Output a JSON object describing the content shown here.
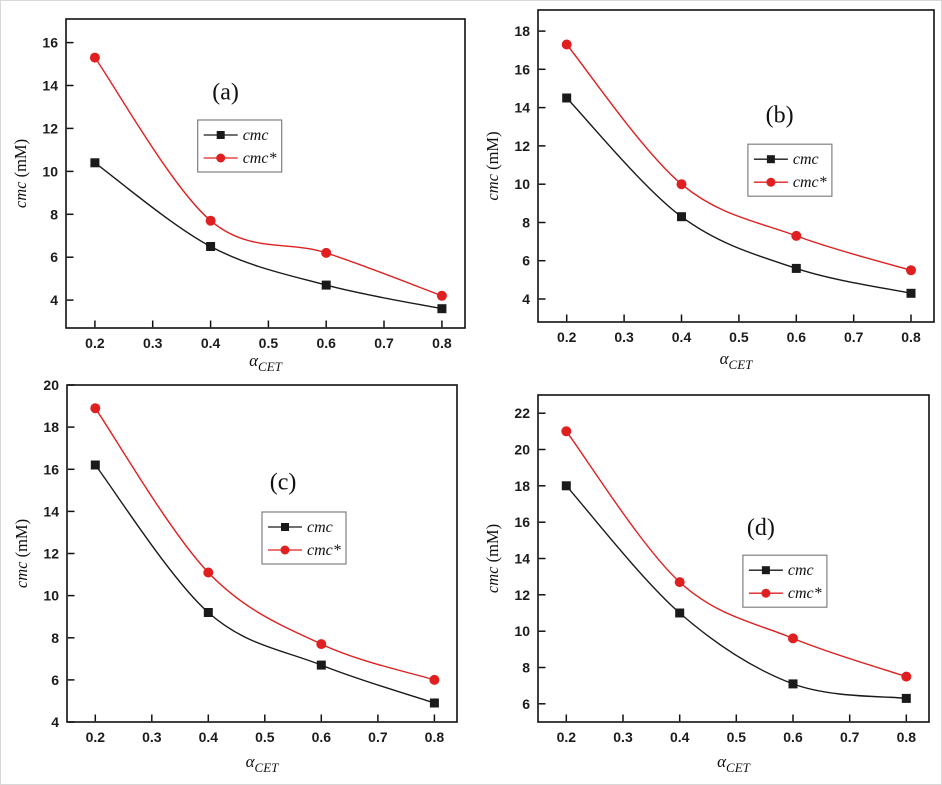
{
  "figure": {
    "background": "#ffffff",
    "border_color": "#d8d8d8",
    "frame_color": "#111111",
    "panel_labels": [
      "(a)",
      "(b)",
      "(c)",
      "(d)"
    ]
  },
  "chart_data": [
    {
      "id": "a",
      "type": "line",
      "panel_label": "(a)",
      "xlabel": {
        "symbol": "α",
        "subscript": "CET"
      },
      "ylabel": {
        "italic": "cmc",
        "rest": " (mM)"
      },
      "x": [
        0.2,
        0.4,
        0.6,
        0.8
      ],
      "series": [
        {
          "name": "cmc",
          "marker": "square",
          "color": "#1a1a1a",
          "values": [
            10.4,
            6.5,
            4.7,
            3.6
          ]
        },
        {
          "name": "cmc*",
          "marker": "circle",
          "color": "#e02020",
          "values": [
            15.3,
            7.7,
            6.2,
            4.2
          ]
        }
      ],
      "xlim": [
        0.15,
        0.84
      ],
      "ylim": [
        2.7,
        17.1
      ],
      "xticks": [
        0.2,
        0.3,
        0.4,
        0.5,
        0.6,
        0.7,
        0.8
      ],
      "yticks": [
        4,
        6,
        8,
        10,
        12,
        14,
        16
      ],
      "grid": false,
      "legend_position": "inside-center",
      "legend_pos": {
        "fx": 0.33,
        "fy": 0.327
      },
      "label_pos": {
        "fx": 0.4,
        "fy": 0.26
      },
      "plot": {
        "l": 66,
        "t": 19,
        "r": 465,
        "b": 328
      },
      "xlabel_dy": 38
    },
    {
      "id": "b",
      "type": "line",
      "panel_label": "(b)",
      "xlabel": {
        "symbol": "α",
        "subscript": "CET"
      },
      "ylabel": {
        "italic": "cmc",
        "rest": " (mM)"
      },
      "x": [
        0.2,
        0.4,
        0.6,
        0.8
      ],
      "series": [
        {
          "name": "cmc",
          "marker": "square",
          "color": "#1a1a1a",
          "values": [
            14.5,
            8.3,
            5.6,
            4.3
          ]
        },
        {
          "name": "cmc*",
          "marker": "circle",
          "color": "#e02020",
          "values": [
            17.3,
            10.0,
            7.3,
            5.5
          ]
        }
      ],
      "xlim": [
        0.15,
        0.84
      ],
      "ylim": [
        2.8,
        19.1
      ],
      "xticks": [
        0.2,
        0.3,
        0.4,
        0.5,
        0.6,
        0.7,
        0.8
      ],
      "yticks": [
        4,
        6,
        8,
        10,
        12,
        14,
        16,
        18
      ],
      "grid": false,
      "legend_position": "inside-right",
      "legend_pos": {
        "fx": 0.53,
        "fy": 0.43
      },
      "label_pos": {
        "fx": 0.61,
        "fy": 0.36
      },
      "plot": {
        "l": 67,
        "t": 10,
        "r": 463,
        "b": 322
      },
      "xlabel_dy": 42
    },
    {
      "id": "c",
      "type": "line",
      "panel_label": "(c)",
      "xlabel": {
        "symbol": "α",
        "subscript": "CET"
      },
      "ylabel": {
        "italic": "cmc",
        "rest": " (mM)"
      },
      "x": [
        0.2,
        0.4,
        0.6,
        0.8
      ],
      "series": [
        {
          "name": "cmc",
          "marker": "square",
          "color": "#1a1a1a",
          "values": [
            16.2,
            9.2,
            6.7,
            4.9
          ]
        },
        {
          "name": "cmc*",
          "marker": "circle",
          "color": "#e02020",
          "values": [
            18.9,
            11.1,
            7.7,
            6.0
          ]
        }
      ],
      "xlim": [
        0.15,
        0.84
      ],
      "ylim": [
        4,
        20
      ],
      "xticks": [
        0.2,
        0.3,
        0.4,
        0.5,
        0.6,
        0.7,
        0.8
      ],
      "yticks": [
        4,
        6,
        8,
        10,
        12,
        14,
        16,
        18,
        20
      ],
      "grid": false,
      "legend_position": "inside-center",
      "legend_pos": {
        "fx": 0.5,
        "fy": 0.377
      },
      "label_pos": {
        "fx": 0.554,
        "fy": 0.31
      },
      "plot": {
        "l": 67,
        "t": 7,
        "r": 457,
        "b": 344
      },
      "xlabel_dy": 45
    },
    {
      "id": "d",
      "type": "line",
      "panel_label": "(d)",
      "xlabel": {
        "symbol": "α",
        "subscript": "CET"
      },
      "ylabel": {
        "italic": "cmc",
        "rest": " (mM)"
      },
      "x": [
        0.2,
        0.4,
        0.6,
        0.8
      ],
      "series": [
        {
          "name": "cmc",
          "marker": "square",
          "color": "#1a1a1a",
          "values": [
            18.0,
            11.0,
            7.1,
            6.3
          ]
        },
        {
          "name": "cmc*",
          "marker": "circle",
          "color": "#e02020",
          "values": [
            21.0,
            12.7,
            9.6,
            7.5
          ]
        }
      ],
      "xlim": [
        0.15,
        0.84
      ],
      "ylim": [
        5,
        23
      ],
      "xticks": [
        0.2,
        0.3,
        0.4,
        0.5,
        0.6,
        0.7,
        0.8
      ],
      "yticks": [
        6,
        8,
        10,
        12,
        14,
        16,
        18,
        20,
        22
      ],
      "grid": false,
      "legend_position": "inside-right",
      "legend_pos": {
        "fx": 0.524,
        "fy": 0.49
      },
      "label_pos": {
        "fx": 0.57,
        "fy": 0.428
      },
      "plot": {
        "l": 67,
        "t": 17,
        "r": 458,
        "b": 344
      },
      "xlabel_dy": 45
    }
  ]
}
